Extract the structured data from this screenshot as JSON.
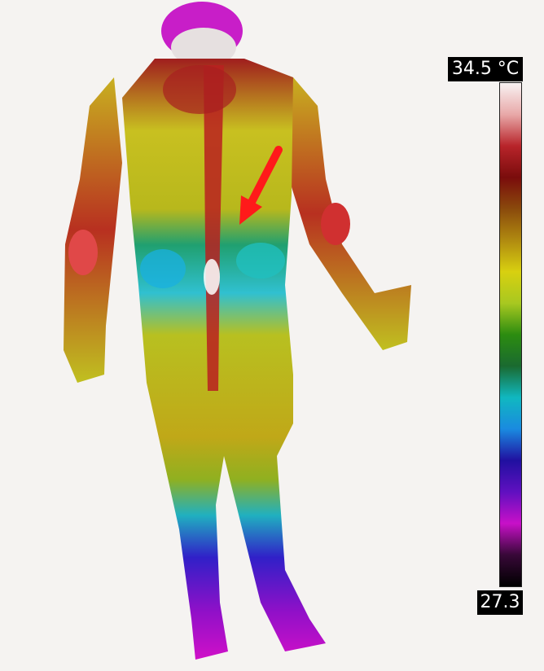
{
  "thermogram": {
    "palette": [
      "#f8f2f2",
      "#e8a8a8",
      "#b8242a",
      "#7a0c0c",
      "#8a4a0c",
      "#b08a10",
      "#d8d010",
      "#a8c820",
      "#2c8c10",
      "#1a6a30",
      "#10b8c0",
      "#1a8ae0",
      "#2010a0",
      "#6010c0",
      "#c810c8",
      "#380838",
      "#000000"
    ],
    "body_colors": {
      "head": "#c81ec8",
      "neck": "#a02020",
      "upper_back": "#b83020",
      "shoulders": "#c8a014",
      "arms": "#c83020",
      "hands": "#c8c020",
      "torso_mid": "#b0b81c",
      "waist": "#20c0c0",
      "spine": "#c02020",
      "hips": "#c0b018",
      "thighs": "#a0b820",
      "lower_legs": "#3a2ad0",
      "feet": "#b010c8"
    },
    "annotation_color": "#ff1a1a"
  },
  "scale": {
    "max_label": "34.5 °C",
    "min_label": "27.3"
  }
}
